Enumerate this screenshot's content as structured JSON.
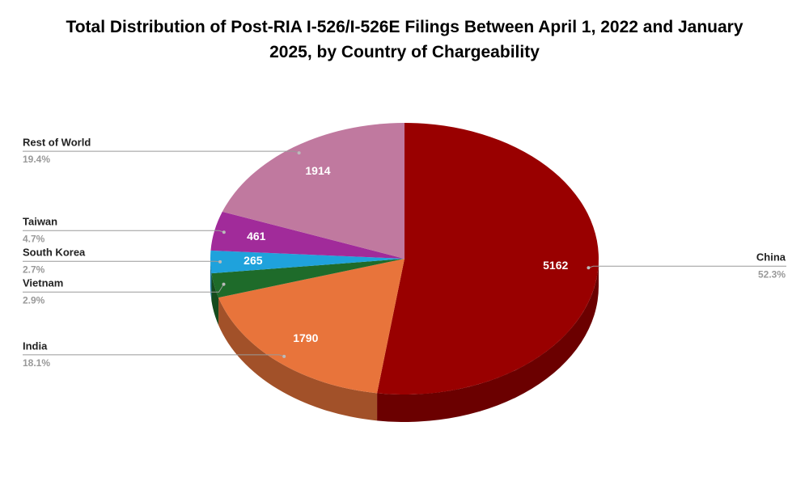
{
  "chart_data": {
    "type": "pie3d",
    "title": "Total Distribution of Post-RIA I-526/I-526E Filings Between April 1, 2022 and January 2025, by Country of Chargeability",
    "categories": [
      "China",
      "India",
      "Vietnam",
      "South Korea",
      "Taiwan",
      "Rest of World"
    ],
    "values": [
      5162,
      1790,
      286,
      265,
      461,
      1914
    ],
    "value_labels": [
      "5162",
      "1790",
      null,
      "265",
      "461",
      "1914"
    ],
    "percent_labels": [
      "52.3%",
      "18.1%",
      "2.9%",
      "2.7%",
      "4.7%",
      "19.4%"
    ],
    "colors": [
      "#990000",
      "#e8743b",
      "#1e6b2a",
      "#1fa2dc",
      "#a12b9a",
      "#c0799f"
    ]
  }
}
